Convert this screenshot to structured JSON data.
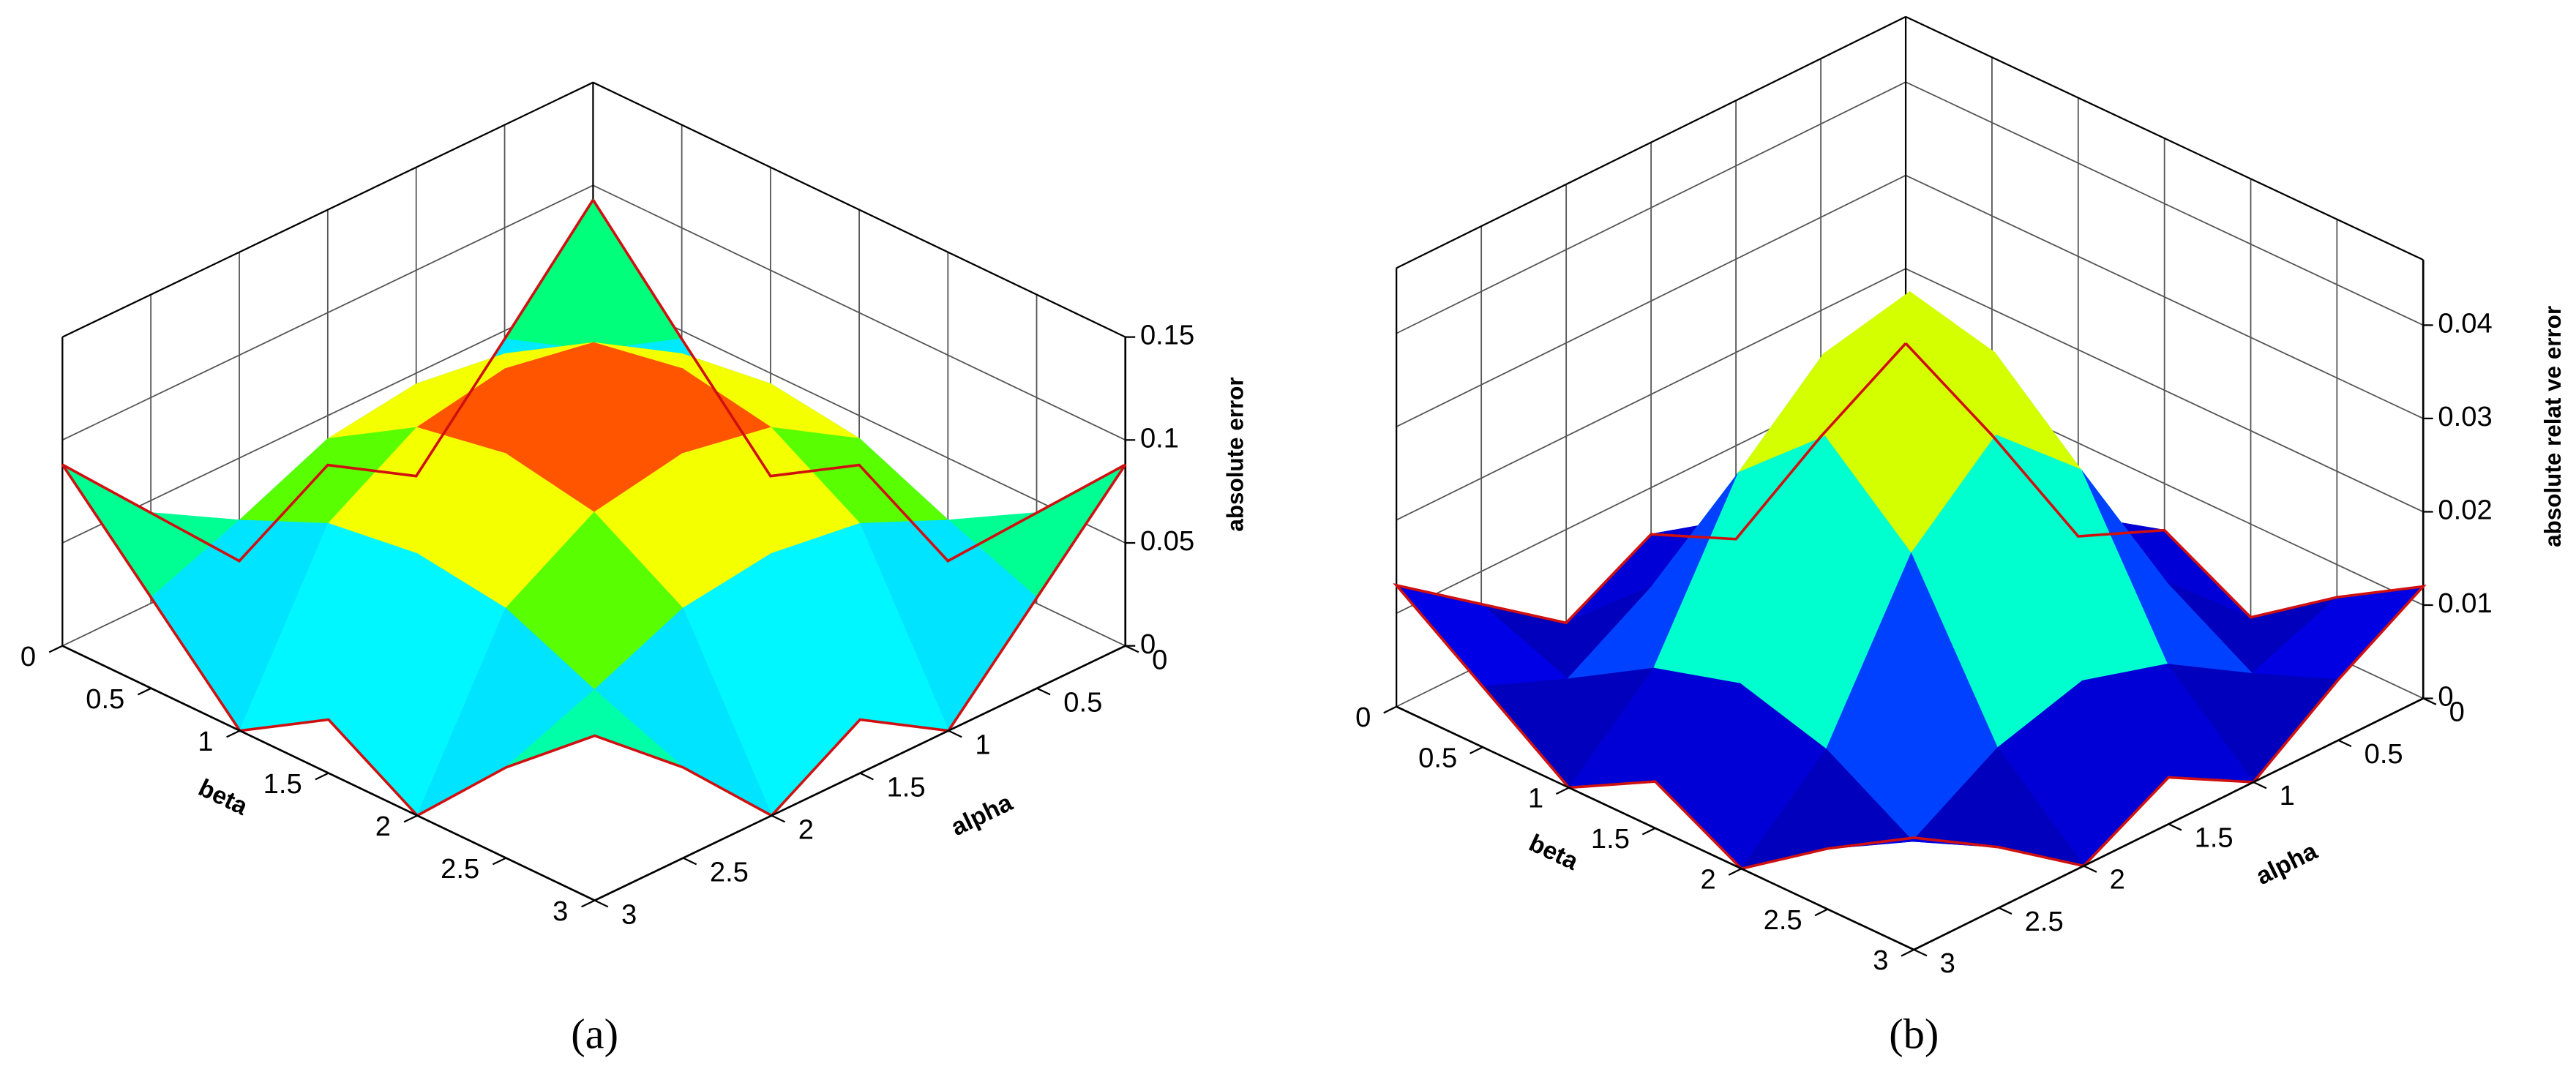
{
  "chart_data": [
    {
      "type": "surface3d",
      "caption": "(a)",
      "xlabel": "alpha",
      "ylabel": "beta",
      "zlabel": "absolute error",
      "x": [
        0,
        0.5,
        1,
        1.5,
        2,
        2.5,
        3
      ],
      "y": [
        0,
        0.5,
        1,
        1.5,
        2,
        2.5,
        3
      ],
      "z": [
        [
          0.093,
          0.046,
          0,
          0.026,
          0,
          0.044,
          0.088
        ],
        [
          0.046,
          0.061,
          0.08,
          0.086,
          0.08,
          0.061,
          0.044
        ],
        [
          0,
          0.08,
          0.106,
          0.114,
          0.106,
          0.08,
          0
        ],
        [
          0.026,
          0.086,
          0.114,
          0.122,
          0.114,
          0.086,
          0.026
        ],
        [
          0,
          0.08,
          0.106,
          0.114,
          0.106,
          0.08,
          0
        ],
        [
          0.044,
          0.061,
          0.08,
          0.086,
          0.08,
          0.061,
          0.044
        ],
        [
          0.088,
          0.044,
          0,
          0.026,
          0,
          0.044,
          0.08
        ]
      ],
      "xlim": [
        0,
        3
      ],
      "ylim": [
        0,
        3
      ],
      "zlim": [
        0,
        0.15
      ],
      "xticks": [
        0,
        0.5,
        1,
        1.5,
        2,
        2.5,
        3
      ],
      "yticks": [
        0,
        0.5,
        1,
        1.5,
        2,
        2.5,
        3
      ],
      "zticks": [
        0,
        0.05,
        0.1,
        0.15
      ],
      "colormap": [
        "#00007a",
        "#0000ff",
        "#00ffff",
        "#00ff00",
        "#ffff00",
        "#ff0000"
      ],
      "edge_color": "#d01010",
      "grid": true
    },
    {
      "type": "surface3d",
      "caption": "(b)",
      "xlabel": "alpha",
      "ylabel": "beta",
      "zlabel": "absolute relat ve error",
      "x": [
        0,
        0.5,
        1,
        1.5,
        2,
        2.5,
        3
      ],
      "y": [
        0,
        0.5,
        1,
        1.5,
        2,
        2.5,
        3
      ],
      "z": [
        [
          0.012,
          0.0065,
          0,
          0.005,
          0,
          0.0065,
          0.012
        ],
        [
          0.0065,
          0.0028,
          0.0083,
          0.011,
          0.0083,
          0.0028,
          0.0065
        ],
        [
          0,
          0.0083,
          0.0248,
          0.033,
          0.0248,
          0.0083,
          0
        ],
        [
          0.005,
          0.011,
          0.033,
          0.044,
          0.033,
          0.011,
          0.005
        ],
        [
          0,
          0.0083,
          0.0248,
          0.033,
          0.0248,
          0.0083,
          0
        ],
        [
          0.0065,
          0.0028,
          0.0083,
          0.011,
          0.0083,
          0.0028,
          0.0065
        ],
        [
          0.013,
          0.0065,
          0,
          0.005,
          0,
          0.0065,
          0.012
        ]
      ],
      "xlim": [
        0,
        3
      ],
      "ylim": [
        0,
        3
      ],
      "zlim": [
        0,
        0.047
      ],
      "xticks": [
        0,
        0.5,
        1,
        1.5,
        2,
        2.5,
        3
      ],
      "yticks": [
        0,
        0.5,
        1,
        1.5,
        2,
        2.5,
        3
      ],
      "zticks": [
        0,
        0.01,
        0.02,
        0.03,
        0.04
      ],
      "colormap": [
        "#00007a",
        "#0000ff",
        "#00ffff",
        "#00ff00",
        "#ffff00",
        "#ff0000"
      ],
      "edge_color": "#d01010",
      "grid": true
    }
  ]
}
